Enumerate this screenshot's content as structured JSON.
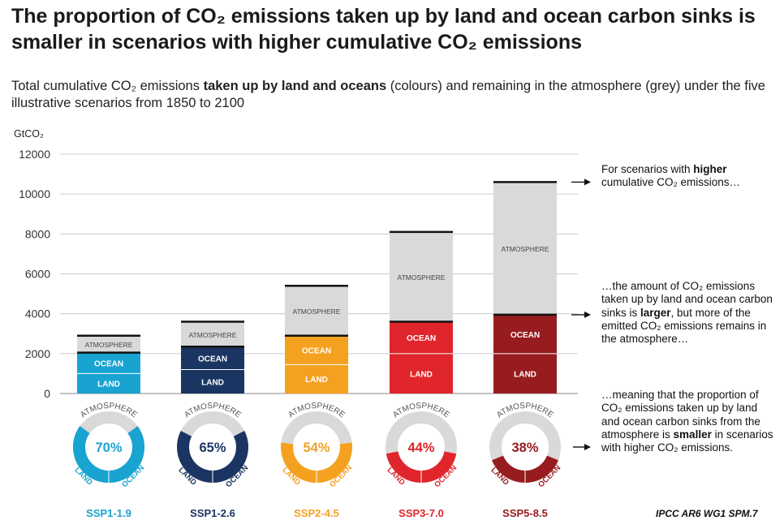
{
  "title": "The proportion of CO₂ emissions taken up by land and ocean carbon sinks is smaller in scenarios with higher cumulative CO₂ emissions",
  "subtitle": {
    "part1": "Total cumulative CO₂ emissions ",
    "bold": "taken up by land and oceans",
    "part2": " (colours) and remaining in the atmosphere (grey) under the five illustrative scenarios from 1850 to 2100"
  },
  "unit_label": "GtCO₂",
  "segment_labels": {
    "land": "LAND",
    "ocean": "OCEAN",
    "atmosphere": "ATMOSPHERE"
  },
  "annotations": {
    "a1": {
      "pre": "For scenarios with ",
      "bold": "higher",
      "post": " cumulative CO₂ emissions…"
    },
    "a2": {
      "pre": "…the amount of CO₂ emissions taken up by land and ocean carbon sinks is ",
      "bold": "larger",
      "post": ", but more of the emitted CO₂ emissions remains in the atmosphere…"
    },
    "a3": {
      "pre": "…meaning that the proportion of CO₂ emissions taken up by land and ocean carbon sinks from the atmosphere is ",
      "bold": "smaller",
      "post": " in scenarios with higher CO₂ emissions."
    }
  },
  "credit": "IPCC AR6 WG1 SPM.7",
  "colors": {
    "atmosphere": "#d9d9d9",
    "divider": "#111111",
    "grid": "#cccccc",
    "axis": "#888888"
  },
  "chart_data": {
    "type": "bar",
    "stacked": true,
    "ylabel": "GtCO₂",
    "ylim": [
      0,
      12000
    ],
    "yticks": [
      0,
      2000,
      4000,
      6000,
      8000,
      10000,
      12000
    ],
    "grid": true,
    "categories": [
      "SSP1-1.9",
      "SSP1-2.6",
      "SSP2-4.5",
      "SSP3-7.0",
      "SSP5-8.5"
    ],
    "colors": [
      "#19a3d1",
      "#1a3561",
      "#f5a120",
      "#e0252c",
      "#961c1f"
    ],
    "series": [
      {
        "name": "LAND",
        "values": [
          1000,
          1200,
          1450,
          2000,
          2000
        ]
      },
      {
        "name": "OCEAN",
        "values": [
          1050,
          1150,
          1450,
          1600,
          1950
        ]
      },
      {
        "name": "ATMOSPHERE",
        "values": [
          850,
          1250,
          2500,
          4500,
          6650
        ]
      }
    ],
    "totals": [
      2900,
      3600,
      5400,
      8100,
      10600
    ],
    "donuts": [
      {
        "label": "70%",
        "sink_percent": 70
      },
      {
        "label": "65%",
        "sink_percent": 65
      },
      {
        "label": "54%",
        "sink_percent": 54
      },
      {
        "label": "44%",
        "sink_percent": 44
      },
      {
        "label": "38%",
        "sink_percent": 38
      }
    ]
  }
}
